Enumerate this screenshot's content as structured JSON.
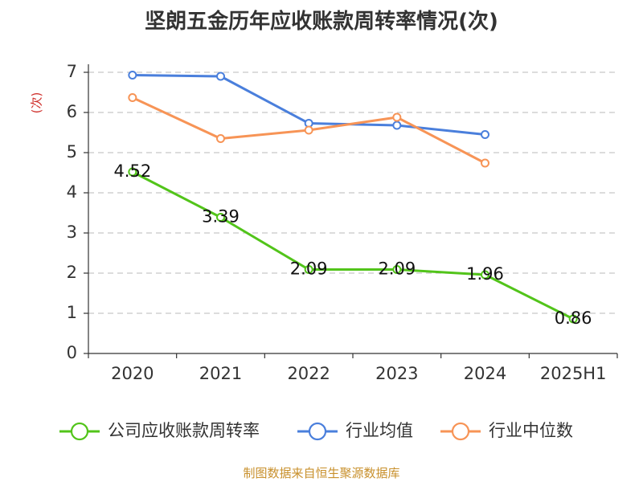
{
  "chart_data": {
    "type": "line",
    "title": "坚朗五金历年应收账款周转率情况(次)",
    "ylabel": "(次)",
    "xlabel": "",
    "categories": [
      "2020",
      "2021",
      "2022",
      "2023",
      "2024",
      "2025H1"
    ],
    "ylim": [
      0,
      7
    ],
    "yticks": [
      0,
      1,
      2,
      3,
      4,
      5,
      6,
      7
    ],
    "grid": true,
    "legend_position": "bottom",
    "series": [
      {
        "name": "公司应收账款周转率",
        "color": "#52c41a",
        "values": [
          4.52,
          3.39,
          2.09,
          2.09,
          1.96,
          0.86
        ],
        "labels": [
          "4.52",
          "3.39",
          "2.09",
          "2.09",
          "1.96",
          "0.86"
        ]
      },
      {
        "name": "行业均值",
        "color": "#4a7fdc",
        "values": [
          6.93,
          6.9,
          5.73,
          5.68,
          5.45,
          null
        ]
      },
      {
        "name": "行业中位数",
        "color": "#f79456",
        "values": [
          6.37,
          5.35,
          5.56,
          5.88,
          4.74,
          null
        ]
      }
    ]
  },
  "source": "制图数据来自恒生聚源数据库"
}
